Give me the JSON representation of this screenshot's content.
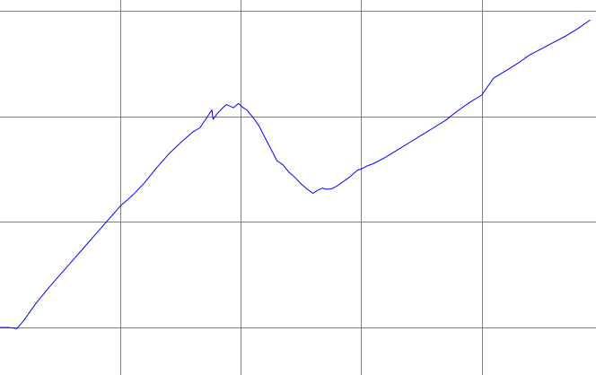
{
  "chart_data": {
    "type": "line",
    "title": "",
    "xlabel": "",
    "ylabel": "",
    "grid": true,
    "legend": "none",
    "xlim": [
      0,
      4.95
    ],
    "ylim": [
      -0.45,
      3.1
    ],
    "series": [
      {
        "color": "#0000ff",
        "x": [
          0.0,
          0.07,
          0.14,
          0.2,
          0.3,
          0.4,
          0.5,
          0.6,
          0.7,
          0.8,
          0.9,
          1.0,
          1.1,
          1.2,
          1.3,
          1.4,
          1.5,
          1.6,
          1.66,
          1.76,
          1.77,
          1.8,
          1.85,
          1.88,
          1.94,
          1.98,
          2.02,
          2.05,
          2.1,
          2.15,
          2.2,
          2.3,
          2.35,
          2.4,
          2.45,
          2.5,
          2.55,
          2.6,
          2.64,
          2.68,
          2.7,
          2.75,
          2.8,
          2.9,
          2.93,
          2.97,
          3.0,
          3.05,
          3.1,
          3.15,
          3.2,
          3.3,
          3.4,
          3.5,
          3.6,
          3.7,
          3.8,
          3.9,
          4.0,
          4.1,
          4.2,
          4.3,
          4.4,
          4.5,
          4.6,
          4.7,
          4.8,
          4.9
        ],
        "y": [
          0.0,
          0.0,
          -0.01,
          0.07,
          0.23,
          0.37,
          0.5,
          0.63,
          0.76,
          0.89,
          1.02,
          1.15,
          1.25,
          1.37,
          1.51,
          1.64,
          1.75,
          1.85,
          1.89,
          2.06,
          1.97,
          2.02,
          2.08,
          2.11,
          2.08,
          2.12,
          2.08,
          2.06,
          1.99,
          1.91,
          1.8,
          1.58,
          1.54,
          1.47,
          1.42,
          1.36,
          1.31,
          1.27,
          1.3,
          1.32,
          1.31,
          1.31,
          1.34,
          1.42,
          1.45,
          1.49,
          1.5,
          1.53,
          1.55,
          1.58,
          1.61,
          1.68,
          1.75,
          1.82,
          1.89,
          1.96,
          2.05,
          2.13,
          2.2,
          2.36,
          2.43,
          2.5,
          2.58,
          2.64,
          2.7,
          2.76,
          2.83,
          2.91
        ]
      }
    ]
  }
}
